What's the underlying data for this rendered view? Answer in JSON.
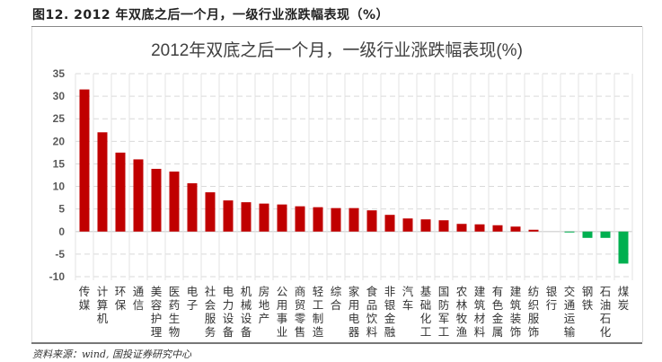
{
  "figure": {
    "caption": "图12. 2012 年双底之后一个月，一级行业涨跌幅表现（%）",
    "source": "资料来源：wind, 国投证券研究中心"
  },
  "chart_data": {
    "type": "bar",
    "title": "2012年双底之后一个月，一级行业涨跌幅表现(%)",
    "xlabel": "",
    "ylabel": "",
    "ylim": [
      -10,
      35
    ],
    "yticks": [
      35,
      30,
      25,
      20,
      15,
      10,
      5,
      0,
      -5,
      -10
    ],
    "grid": true,
    "legend": "none",
    "colors": {
      "positive": "#C00000",
      "negative": "#00B050"
    },
    "categories": [
      "传媒",
      "计算机",
      "环保",
      "通信",
      "美容护理",
      "医药生物",
      "电子",
      "社会服务",
      "电力设备",
      "机械设备",
      "房地产",
      "公用事业",
      "商贸零售",
      "轻工制造",
      "综合",
      "家用电器",
      "食品饮料",
      "非银金融",
      "汽车",
      "基础化工",
      "国防军工",
      "农林牧渔",
      "建筑材料",
      "有色金属",
      "建筑装饰",
      "纺织服饰",
      "银行",
      "交通运输",
      "钢铁",
      "石油石化",
      "煤炭"
    ],
    "values": [
      31.5,
      22.0,
      17.5,
      16.0,
      13.9,
      13.3,
      10.7,
      8.7,
      6.9,
      6.5,
      6.2,
      6.0,
      5.6,
      5.4,
      5.2,
      5.2,
      4.7,
      3.7,
      2.9,
      2.7,
      2.5,
      1.7,
      1.6,
      1.4,
      1.1,
      0.4,
      0.0,
      -0.2,
      -1.4,
      -1.4,
      -7.1
    ]
  }
}
